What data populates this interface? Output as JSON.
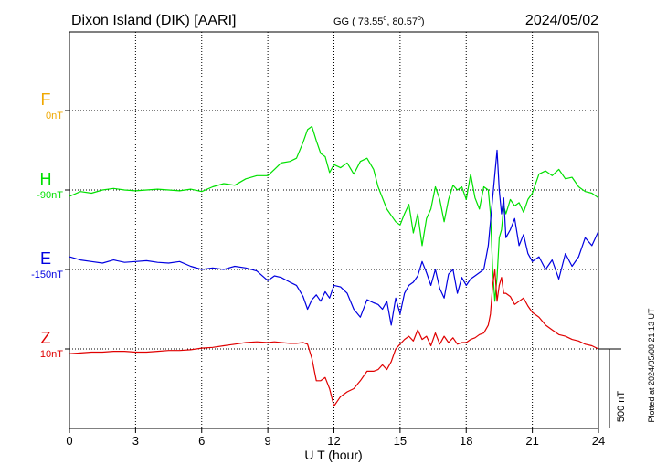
{
  "header": {
    "station": "Dixon Island (DIK)  [AARI]",
    "coords": "GG ( 73.55",
    "coords_sep": ",  80.57",
    "coords_end": ")",
    "degree": "o",
    "date": "2024/05/02"
  },
  "plotted_note": "Plotted at 2024/05/08 21:13 UT",
  "scale_label": "500 nT",
  "colors": {
    "F": "#f0a800",
    "H": "#00e000",
    "E": "#0000e0",
    "Z": "#e00000",
    "grid": "#000000"
  },
  "chart_data": {
    "type": "line",
    "title": "Dixon Island (DIK)  [AARI]",
    "xlabel": "U T (hour)",
    "ylabel": "",
    "xlim": [
      0,
      24
    ],
    "x_ticks": [
      0,
      3,
      6,
      9,
      12,
      15,
      18,
      21,
      24
    ],
    "x_tick_labels": [
      "0",
      "3",
      "6",
      "9",
      "12",
      "15",
      "18",
      "21",
      "24"
    ],
    "ylim_nT": [
      -1300,
      300
    ],
    "grid": true,
    "scale_bar_nT": 500,
    "series": [
      {
        "name": "F",
        "offset_label": "0nT",
        "baseline_nT": 0,
        "x": [],
        "y": []
      },
      {
        "name": "H",
        "offset_label": "-90nT",
        "baseline_nT": -500,
        "x": [
          0,
          0.5,
          1,
          1.5,
          2,
          2.5,
          3,
          3.5,
          4,
          4.5,
          5,
          5.5,
          6,
          6.5,
          7,
          7.5,
          8,
          8.5,
          9,
          9.3,
          9.6,
          10,
          10.3,
          10.6,
          10.8,
          11,
          11.2,
          11.4,
          11.6,
          11.8,
          12,
          12.3,
          12.6,
          12.9,
          13.2,
          13.5,
          13.8,
          14,
          14.2,
          14.4,
          14.6,
          14.8,
          15,
          15.2,
          15.4,
          15.6,
          15.8,
          16,
          16.2,
          16.4,
          16.6,
          16.8,
          17,
          17.2,
          17.4,
          17.6,
          17.8,
          18,
          18.2,
          18.4,
          18.6,
          18.8,
          19,
          19.1,
          19.2,
          19.3,
          19.4,
          19.5,
          19.6,
          19.7,
          19.8,
          20,
          20.2,
          20.4,
          20.6,
          20.8,
          21,
          21.3,
          21.6,
          21.9,
          22.2,
          22.5,
          22.8,
          23.1,
          23.4,
          23.7,
          24
        ],
        "y": [
          -540,
          -510,
          -520,
          -500,
          -490,
          -500,
          -505,
          -500,
          -495,
          -500,
          -505,
          -495,
          -510,
          -480,
          -460,
          -470,
          -430,
          -410,
          -410,
          -370,
          -330,
          -320,
          -300,
          -200,
          -120,
          -100,
          -190,
          -270,
          -290,
          -390,
          -340,
          -360,
          -330,
          -400,
          -320,
          -300,
          -370,
          -480,
          -550,
          -620,
          -660,
          -700,
          -720,
          -650,
          -590,
          -770,
          -650,
          -850,
          -680,
          -620,
          -480,
          -560,
          -700,
          -560,
          -470,
          -500,
          -480,
          -560,
          -400,
          -550,
          -620,
          -480,
          -500,
          -650,
          -1000,
          -1200,
          -1050,
          -800,
          -750,
          -600,
          -650,
          -560,
          -600,
          -580,
          -640,
          -560,
          -520,
          -400,
          -380,
          -410,
          -370,
          -430,
          -420,
          -480,
          -510,
          -520,
          -550
        ]
      },
      {
        "name": "E",
        "offset_label": "-150nT",
        "baseline_nT": -1000,
        "x": [
          0,
          0.5,
          1,
          1.5,
          2,
          2.5,
          3,
          3.5,
          4,
          4.5,
          5,
          5.5,
          6,
          6.5,
          7,
          7.5,
          8,
          8.5,
          9,
          9.3,
          9.6,
          10,
          10.3,
          10.6,
          10.8,
          11,
          11.2,
          11.4,
          11.6,
          11.8,
          12,
          12.3,
          12.6,
          12.9,
          13.2,
          13.5,
          13.8,
          14,
          14.2,
          14.4,
          14.6,
          14.8,
          15,
          15.2,
          15.4,
          15.6,
          15.8,
          16,
          16.2,
          16.4,
          16.6,
          16.8,
          17,
          17.2,
          17.4,
          17.6,
          17.8,
          18,
          18.2,
          18.4,
          18.6,
          18.8,
          19,
          19.1,
          19.2,
          19.3,
          19.4,
          19.5,
          19.6,
          19.7,
          19.8,
          20,
          20.2,
          20.4,
          20.6,
          20.8,
          21,
          21.3,
          21.6,
          21.9,
          22.2,
          22.5,
          22.8,
          23.1,
          23.4,
          23.7,
          24
        ],
        "y": [
          -920,
          -940,
          -950,
          -960,
          -940,
          -955,
          -950,
          -945,
          -955,
          -960,
          -950,
          -980,
          -1000,
          -990,
          -1000,
          -980,
          -990,
          -1010,
          -1070,
          -1040,
          -1050,
          -1080,
          -1100,
          -1170,
          -1250,
          -1190,
          -1160,
          -1200,
          -1140,
          -1180,
          -1100,
          -1110,
          -1150,
          -1250,
          -1300,
          -1190,
          -1210,
          -1220,
          -1250,
          -1200,
          -1350,
          -1180,
          -1280,
          -1150,
          -1100,
          -1080,
          -1040,
          -950,
          -1020,
          -1100,
          -1000,
          -1120,
          -1180,
          -1030,
          -1000,
          -1150,
          -1050,
          -1100,
          -1060,
          -1040,
          -1020,
          -1000,
          -850,
          -700,
          -550,
          -400,
          -250,
          -500,
          -650,
          -550,
          -800,
          -750,
          -680,
          -850,
          -780,
          -900,
          -950,
          -920,
          -1000,
          -940,
          -1060,
          -900,
          -980,
          -920,
          -800,
          -850,
          -760
        ]
      },
      {
        "name": "Z",
        "offset_label": "10nT",
        "baseline_nT": -1500,
        "x": [
          0,
          0.5,
          1,
          1.5,
          2,
          2.5,
          3,
          3.5,
          4,
          4.5,
          5,
          5.5,
          6,
          6.5,
          7,
          7.5,
          8,
          8.5,
          9,
          9.3,
          9.6,
          10,
          10.3,
          10.6,
          10.8,
          11,
          11.2,
          11.4,
          11.6,
          11.8,
          12,
          12.3,
          12.6,
          12.9,
          13.2,
          13.5,
          13.8,
          14,
          14.2,
          14.4,
          14.6,
          14.8,
          15,
          15.2,
          15.4,
          15.6,
          15.8,
          16,
          16.2,
          16.4,
          16.6,
          16.8,
          17,
          17.2,
          17.4,
          17.6,
          17.8,
          18,
          18.2,
          18.4,
          18.6,
          18.8,
          19,
          19.1,
          19.2,
          19.3,
          19.4,
          19.5,
          19.6,
          19.7,
          19.8,
          20,
          20.2,
          20.4,
          20.6,
          20.8,
          21,
          21.3,
          21.6,
          21.9,
          22.2,
          22.5,
          22.8,
          23.1,
          23.4,
          23.7,
          24
        ],
        "y": [
          -1530,
          -1525,
          -1520,
          -1520,
          -1515,
          -1515,
          -1520,
          -1520,
          -1515,
          -1510,
          -1510,
          -1505,
          -1495,
          -1490,
          -1480,
          -1470,
          -1460,
          -1455,
          -1460,
          -1455,
          -1460,
          -1465,
          -1465,
          -1460,
          -1470,
          -1560,
          -1700,
          -1700,
          -1680,
          -1750,
          -1860,
          -1800,
          -1770,
          -1750,
          -1700,
          -1640,
          -1640,
          -1630,
          -1600,
          -1630,
          -1580,
          -1500,
          -1470,
          -1440,
          -1420,
          -1450,
          -1380,
          -1440,
          -1420,
          -1480,
          -1400,
          -1470,
          -1420,
          -1460,
          -1430,
          -1470,
          -1460,
          -1460,
          -1440,
          -1430,
          -1410,
          -1400,
          -1350,
          -1280,
          -1100,
          -1000,
          -1200,
          -1100,
          -1050,
          -1150,
          -1150,
          -1170,
          -1220,
          -1200,
          -1180,
          -1230,
          -1270,
          -1300,
          -1350,
          -1380,
          -1410,
          -1420,
          -1440,
          -1450,
          -1470,
          -1480,
          -1500
        ]
      }
    ]
  }
}
